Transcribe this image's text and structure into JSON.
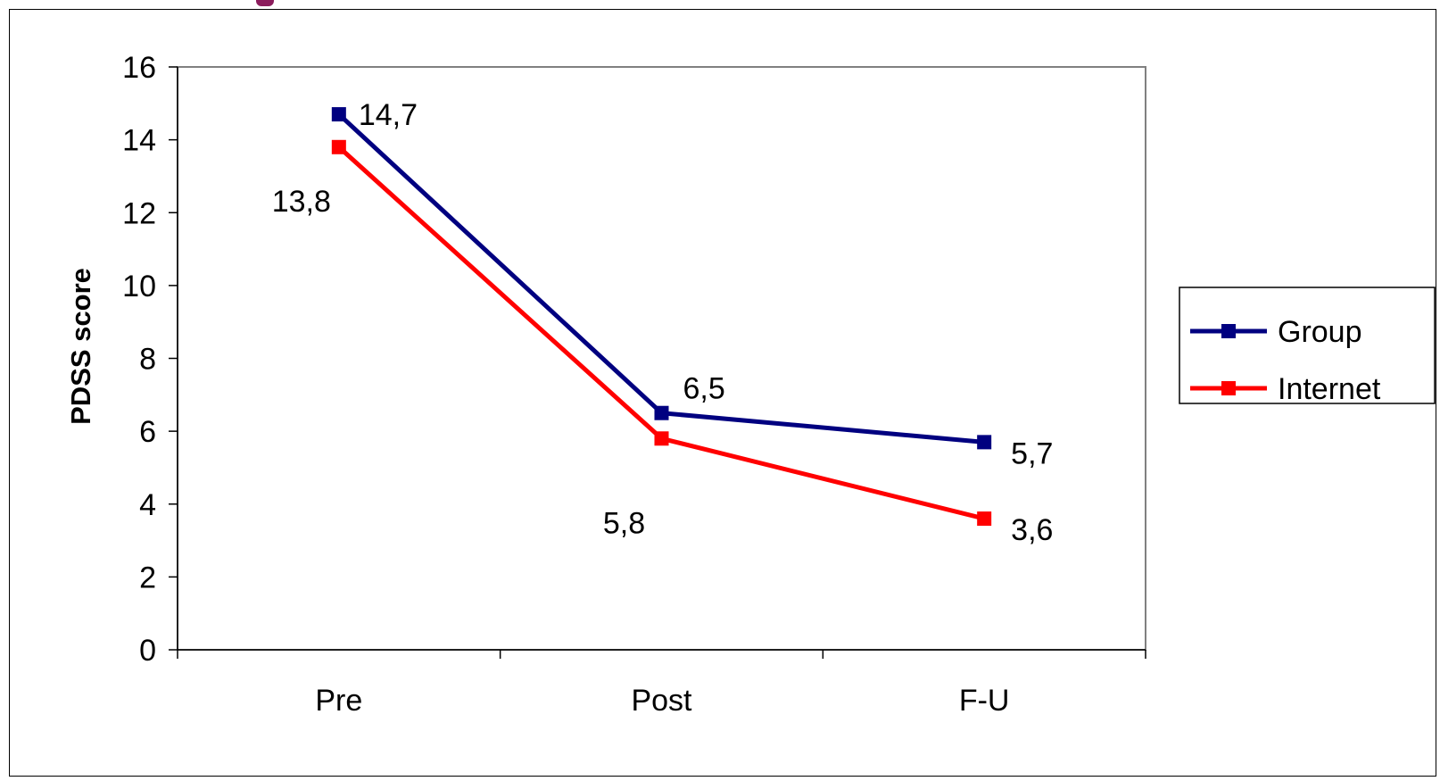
{
  "colors": {
    "group": "#000080",
    "internet": "#ff0000",
    "axis": "#808080",
    "accent": "#8b1c5c"
  },
  "chart_data": {
    "type": "line",
    "title": "",
    "xlabel": "",
    "ylabel": "PDSS score",
    "categories": [
      "Pre",
      "Post",
      "F-U"
    ],
    "ylim": [
      0,
      16
    ],
    "yticks": [
      0,
      2,
      4,
      6,
      8,
      10,
      12,
      14,
      16
    ],
    "grid": false,
    "legend_position": "right",
    "series": [
      {
        "name": "Group",
        "values": [
          14.7,
          6.5,
          5.7
        ],
        "labels": [
          "14,7",
          "6,5",
          "5,7"
        ],
        "color": "#000080",
        "marker": "square"
      },
      {
        "name": "Internet",
        "values": [
          13.8,
          5.8,
          3.6
        ],
        "labels": [
          "13,8",
          "5,8",
          "3,6"
        ],
        "color": "#ff0000",
        "marker": "square"
      }
    ]
  }
}
